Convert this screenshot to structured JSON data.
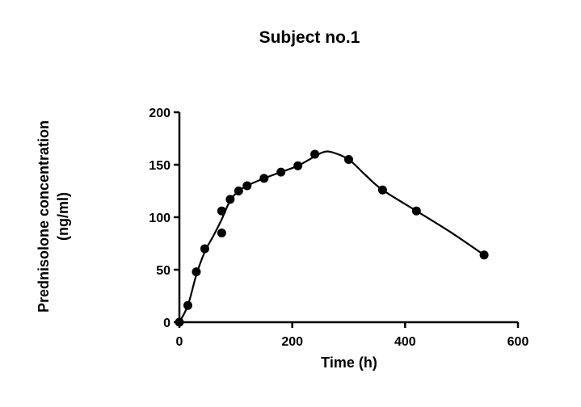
{
  "chart_data": {
    "type": "scatter",
    "title": "Subject no.1",
    "xlabel": "Time (h)",
    "ylabel_line1": "Prednisolone concentration",
    "ylabel_line2": "(ng/ml)",
    "xlim": [
      0,
      600
    ],
    "ylim": [
      0,
      200
    ],
    "x_ticks": [
      0,
      200,
      400,
      600
    ],
    "y_ticks": [
      0,
      50,
      100,
      150,
      200
    ],
    "grid": false,
    "legend": "none",
    "colors": {
      "marker": "#000000",
      "line": "#000000"
    },
    "series": [
      {
        "x": [
          0,
          15,
          30,
          45,
          75,
          75,
          90,
          105,
          120,
          150,
          180,
          210,
          240,
          300,
          360,
          420,
          540
        ],
        "y": [
          0,
          16,
          48,
          70,
          85,
          106,
          117,
          125,
          130,
          137,
          143,
          149,
          160,
          155,
          126,
          106,
          64
        ]
      }
    ],
    "fit_curve": {
      "x": [
        0,
        15,
        30,
        45,
        60,
        75,
        90,
        105,
        120,
        150,
        180,
        210,
        240,
        255,
        270,
        300,
        330,
        360,
        420,
        480,
        540
      ],
      "y": [
        0,
        16,
        45,
        67,
        82,
        98,
        116,
        125,
        130,
        137,
        143,
        149,
        158,
        162,
        162,
        155,
        140,
        126,
        106,
        86,
        64
      ]
    }
  }
}
